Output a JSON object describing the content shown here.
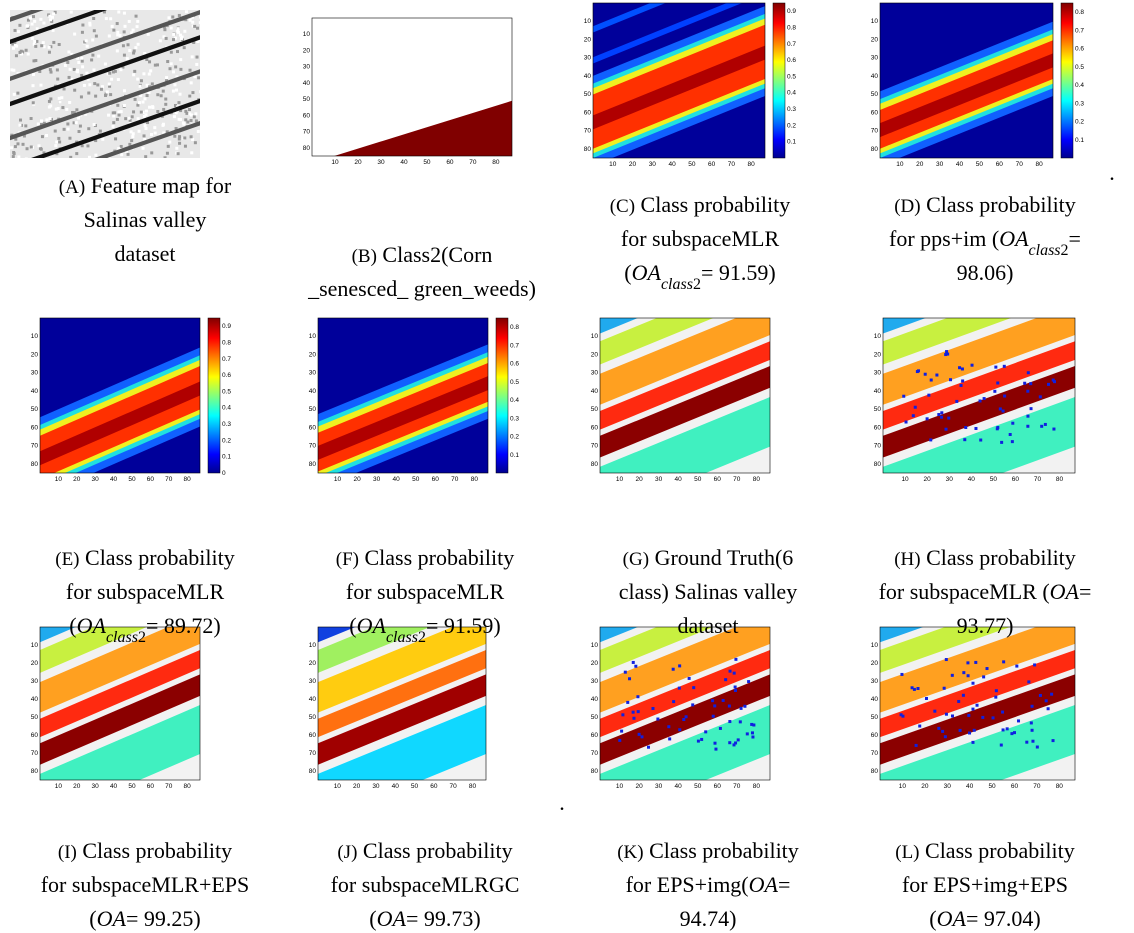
{
  "axis_ticks": [
    10,
    20,
    30,
    40,
    50,
    60,
    70,
    80
  ],
  "colorbars": [
    [
      0.1,
      0.2,
      0.3,
      0.4,
      0.5,
      0.6,
      0.7,
      0.8,
      0.9
    ],
    [
      0.1,
      0.2,
      0.3,
      0.4,
      0.5,
      0.6,
      0.7,
      0.8
    ],
    [
      0,
      0.1,
      0.2,
      0.3,
      0.4,
      0.5,
      0.6,
      0.7,
      0.8,
      0.9
    ],
    [
      0.1,
      0.2,
      0.3,
      0.4,
      0.5,
      0.6,
      0.7,
      0.8
    ]
  ],
  "stray_marks": [
    ".",
    "."
  ],
  "panels": [
    {
      "label": "(A)",
      "lines": [
        [
          "Feature map for"
        ],
        [
          "Salinas valley"
        ],
        [
          "dataset"
        ]
      ]
    },
    {
      "label": "(B)",
      "lines": [
        [
          "Class2(Corn"
        ],
        [
          "_senesced_ green_weeds)"
        ]
      ]
    },
    {
      "label": "(C)",
      "lines": [
        [
          "Class probability"
        ],
        [
          "for subspaceMLR"
        ],
        [
          "(",
          {
            "text": "OA",
            "style": "italic"
          },
          {
            "text": "class",
            "style": "sub-italic"
          },
          {
            "text": "2",
            "style": "sub"
          },
          "= 91.59)"
        ]
      ]
    },
    {
      "label": "(D)",
      "lines": [
        [
          "Class probability"
        ],
        [
          "for pps+im (",
          {
            "text": "OA",
            "style": "italic"
          },
          {
            "text": "class",
            "style": "sub-italic"
          },
          {
            "text": "2",
            "style": "sub"
          },
          "="
        ],
        [
          "98.06)"
        ]
      ]
    },
    {
      "label": "(E)",
      "lines": [
        [
          "Class probability"
        ],
        [
          "for subspaceMLR"
        ],
        [
          "(",
          {
            "text": "OA",
            "style": "italic"
          },
          {
            "text": "class",
            "style": "sub-italic"
          },
          {
            "text": "2",
            "style": "sub"
          },
          "= 89.72)"
        ]
      ]
    },
    {
      "label": "(F)",
      "lines": [
        [
          "Class probability"
        ],
        [
          "for subspaceMLR"
        ],
        [
          "(",
          {
            "text": "OA",
            "style": "italic"
          },
          {
            "text": "class",
            "style": "sub-italic"
          },
          {
            "text": "2",
            "style": "sub"
          },
          "= 91.59)"
        ]
      ]
    },
    {
      "label": "(G)",
      "lines": [
        [
          "Ground Truth(6"
        ],
        [
          "class) Salinas valley"
        ],
        [
          "dataset"
        ]
      ]
    },
    {
      "label": "(H)",
      "lines": [
        [
          "Class probability"
        ],
        [
          "for subspaceMLR (",
          {
            "text": "OA",
            "style": "italic"
          },
          "="
        ],
        [
          "93.77)"
        ]
      ]
    },
    {
      "label": "(I)",
      "lines": [
        [
          "Class probability"
        ],
        [
          "for subspaceMLR+EPS"
        ],
        [
          "(",
          {
            "text": "OA",
            "style": "italic"
          },
          "= 99.25)"
        ]
      ]
    },
    {
      "label": "(J)",
      "lines": [
        [
          "Class probability"
        ],
        [
          "for subspaceMLRGC"
        ],
        [
          "(",
          {
            "text": "OA",
            "style": "italic"
          },
          "= 99.73)"
        ]
      ]
    },
    {
      "label": "(K)",
      "lines": [
        [
          "Class probability"
        ],
        [
          "for EPS+img(",
          {
            "text": "OA",
            "style": "italic"
          },
          "="
        ],
        [
          "94.74)"
        ]
      ]
    },
    {
      "label": "(L)",
      "lines": [
        [
          "Class probability"
        ],
        [
          "for EPS+img+EPS"
        ],
        [
          "(",
          {
            "text": "OA",
            "style": "italic"
          },
          "= 97.04)"
        ]
      ]
    }
  ]
}
